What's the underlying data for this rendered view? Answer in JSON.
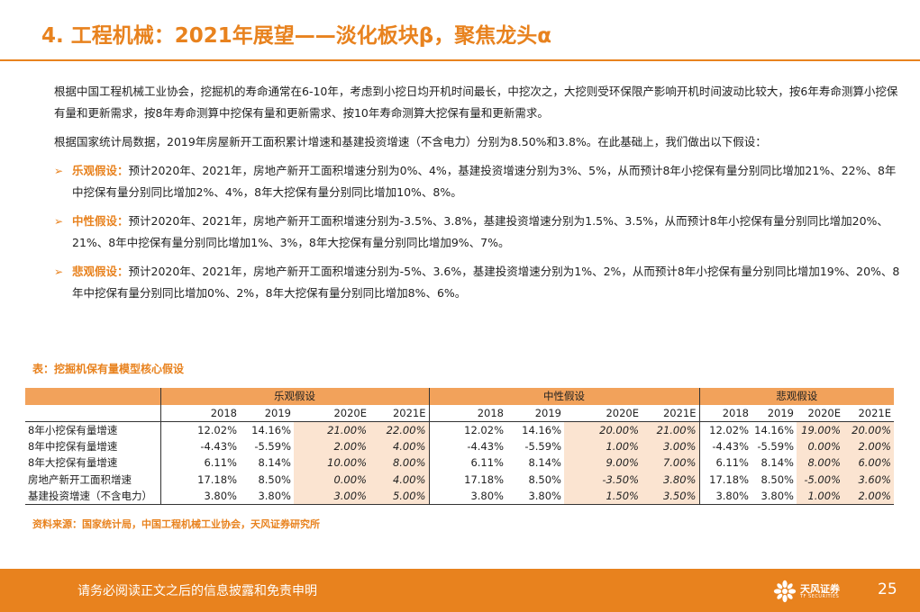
{
  "header": {
    "title": "4. 工程机械：2021年展望——淡化板块β，聚焦龙头α"
  },
  "body": {
    "para1": "根据中国工程机械工业协会，挖掘机的寿命通常在6-10年，考虑到小挖日均开机时间最长，中挖次之，大挖则受环保限产影响开机时间波动比较大，按6年寿命测算小挖保有量和更新需求，按8年寿命测算中挖保有量和更新需求、按10年寿命测算大挖保有量和更新需求。",
    "para2": "根据国家统计局数据，2019年房屋新开工面积累计增速和基建投资增速（不含电力）分别为8.50%和3.8%。在此基础上，我们做出以下假设：",
    "bullets": [
      {
        "lead": "乐观假设：",
        "text": "预计2020年、2021年，房地产新开工面积增速分别为0%、4%，基建投资增速分别为3%、5%，从而预计8年小挖保有量分别同比增加21%、22%、8年中挖保有量分别同比增加2%、4%，8年大挖保有量分别同比增加10%、8%。"
      },
      {
        "lead": "中性假设：",
        "text": "预计2020年、2021年，房地产新开工面积增速分别为-3.5%、3.8%，基建投资增速分别为1.5%、3.5%，从而预计8年小挖保有量分别同比增加20%、21%、8年中挖保有量分别同比增加1%、3%，8年大挖保有量分别同比增加9%、7%。"
      },
      {
        "lead": "悲观假设：",
        "text": "预计2020年、2021年，房地产新开工面积增速分别为-5%、3.6%，基建投资增速分别为1%、2%，从而预计8年小挖保有量分别同比增加19%、20%、8年中挖保有量分别同比增加0%、2%，8年大挖保有量分别同比增加8%、6%。"
      }
    ]
  },
  "table": {
    "caption": "表：挖掘机保有量模型核心假设",
    "groups": [
      "乐观假设",
      "中性假设",
      "悲观假设"
    ],
    "years": [
      "2018",
      "2019",
      "2020E",
      "2021E",
      "2018",
      "2019",
      "2020E",
      "2021E",
      "2018",
      "2019",
      "2020E",
      "2021E"
    ],
    "rows": [
      {
        "label": "8年小挖保有量增速",
        "cells": [
          "12.02%",
          "14.16%",
          "21.00%",
          "22.00%",
          "12.02%",
          "14.16%",
          "20.00%",
          "21.00%",
          "12.02%",
          "14.16%",
          "19.00%",
          "20.00%"
        ]
      },
      {
        "label": "8年中挖保有量增速",
        "cells": [
          "-4.43%",
          "-5.59%",
          "2.00%",
          "4.00%",
          "-4.43%",
          "-5.59%",
          "1.00%",
          "3.00%",
          "-4.43%",
          "-5.59%",
          "0.00%",
          "2.00%"
        ]
      },
      {
        "label": "8年大挖保有量增速",
        "cells": [
          "6.11%",
          "8.14%",
          "10.00%",
          "8.00%",
          "6.11%",
          "8.14%",
          "9.00%",
          "7.00%",
          "6.11%",
          "8.14%",
          "8.00%",
          "6.00%"
        ]
      },
      {
        "label": "房地产新开工面积增速",
        "cells": [
          "17.18%",
          "8.50%",
          "0.00%",
          "4.00%",
          "17.18%",
          "8.50%",
          "-3.50%",
          "3.80%",
          "17.18%",
          "8.50%",
          "-5.00%",
          "3.60%"
        ]
      },
      {
        "label": "基建投资增速（不含电力）",
        "cells": [
          "3.80%",
          "3.80%",
          "3.00%",
          "5.00%",
          "3.80%",
          "3.80%",
          "1.50%",
          "3.50%",
          "3.80%",
          "3.80%",
          "1.00%",
          "2.00%"
        ]
      }
    ],
    "source": "资料来源：国家统计局，中国工程机械工业协会，天风证券研究所"
  },
  "footer": {
    "disclaimer": "请务必阅读正文之后的信息披露和免责申明",
    "logo_text": "天风证券",
    "logo_sub": "TF SECURITIES",
    "page_number": "25"
  },
  "colors": {
    "accent": "#E8821E",
    "header_fill": "#F2A25B",
    "estimate_fill": "#FBE4D1"
  }
}
